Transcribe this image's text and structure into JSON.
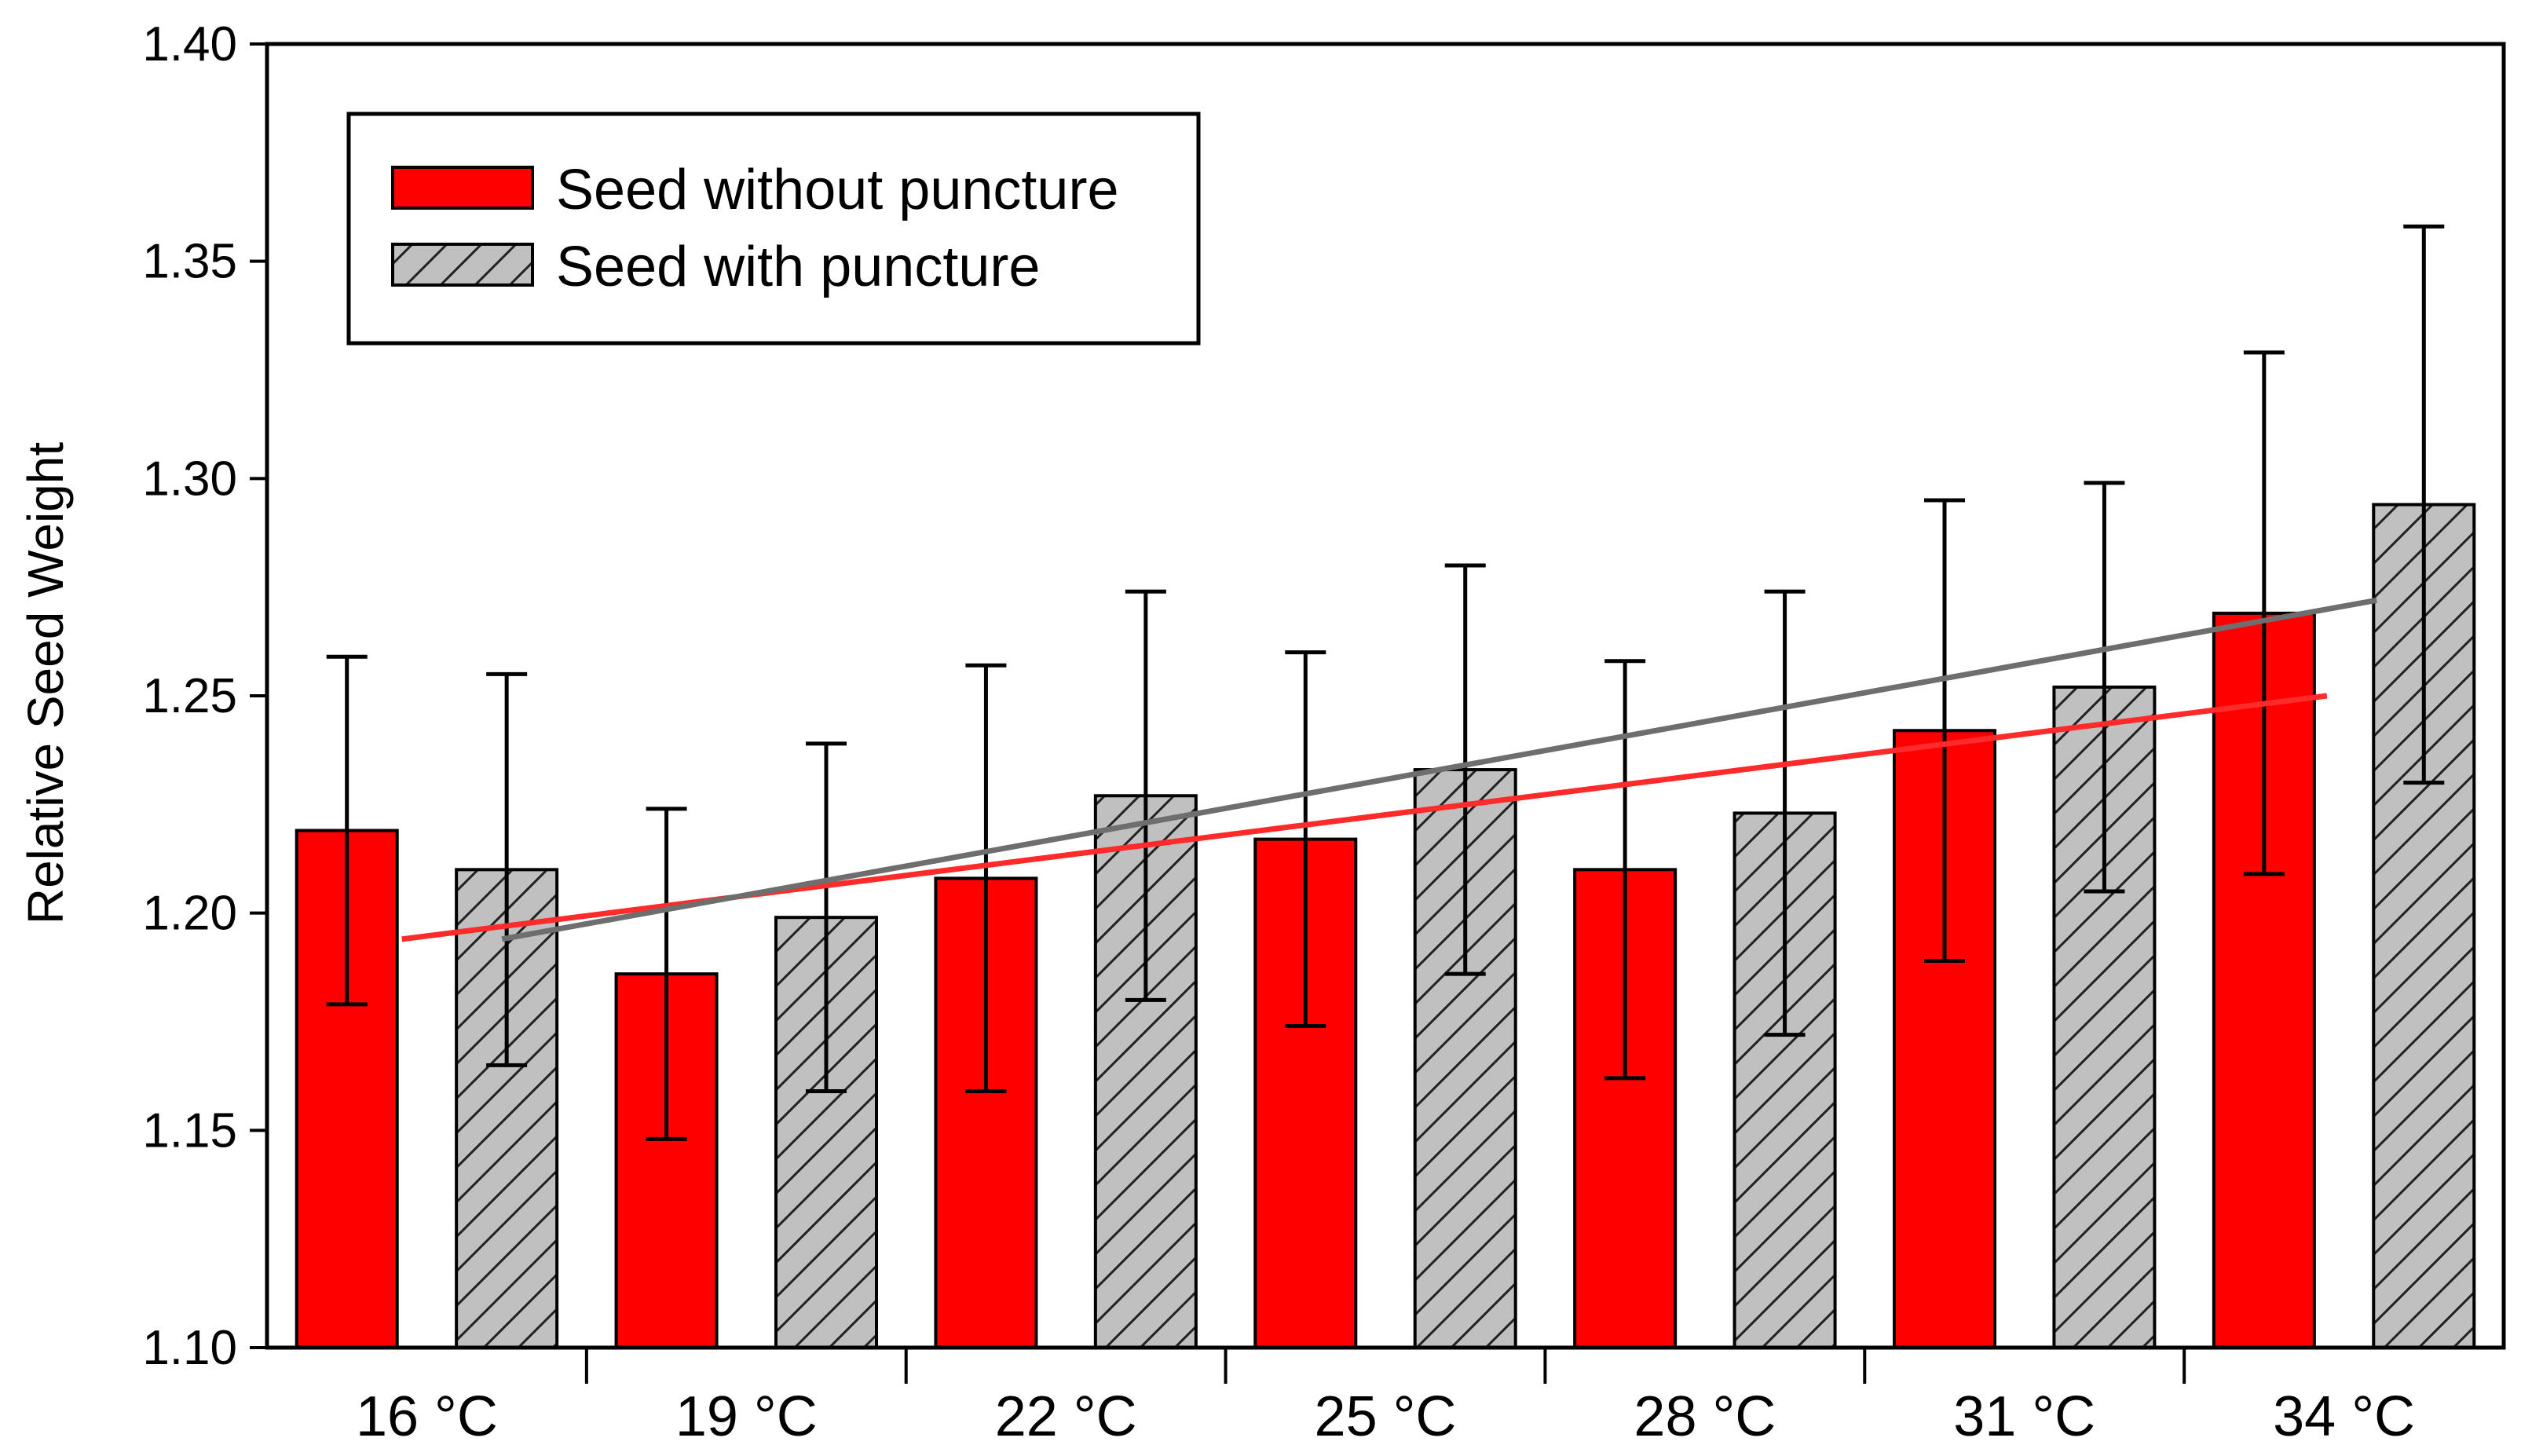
{
  "chart_data": {
    "type": "bar",
    "title": "",
    "xlabel": "",
    "ylabel": "Relative Seed Weight",
    "ylim": [
      1.1,
      1.4
    ],
    "yticks": [
      "1.10",
      "1.15",
      "1.20",
      "1.25",
      "1.30",
      "1.35",
      "1.40"
    ],
    "categories": [
      "16 °C",
      "19 °C",
      "22 °C",
      "25 °C",
      "28 °C",
      "31 °C",
      "34 °C"
    ],
    "legend_position": "top-left",
    "series": [
      {
        "name": "Seed without puncture",
        "color": "#ff0000",
        "pattern": "solid",
        "values": [
          1.219,
          1.186,
          1.208,
          1.217,
          1.21,
          1.242,
          1.269
        ],
        "error": [
          0.04,
          0.038,
          0.049,
          0.043,
          0.048,
          0.053,
          0.06
        ],
        "trend": {
          "color": "#ff2a2a",
          "start": 1.194,
          "end": 1.25
        }
      },
      {
        "name": "Seed with puncture",
        "color": "#c0c0c0",
        "pattern": "hatched",
        "values": [
          1.21,
          1.199,
          1.227,
          1.233,
          1.223,
          1.252,
          1.294
        ],
        "error": [
          0.045,
          0.04,
          0.047,
          0.047,
          0.051,
          0.047,
          0.064
        ],
        "trend": {
          "color": "#6e6e6e",
          "start": 1.194,
          "end": 1.272
        }
      }
    ]
  }
}
